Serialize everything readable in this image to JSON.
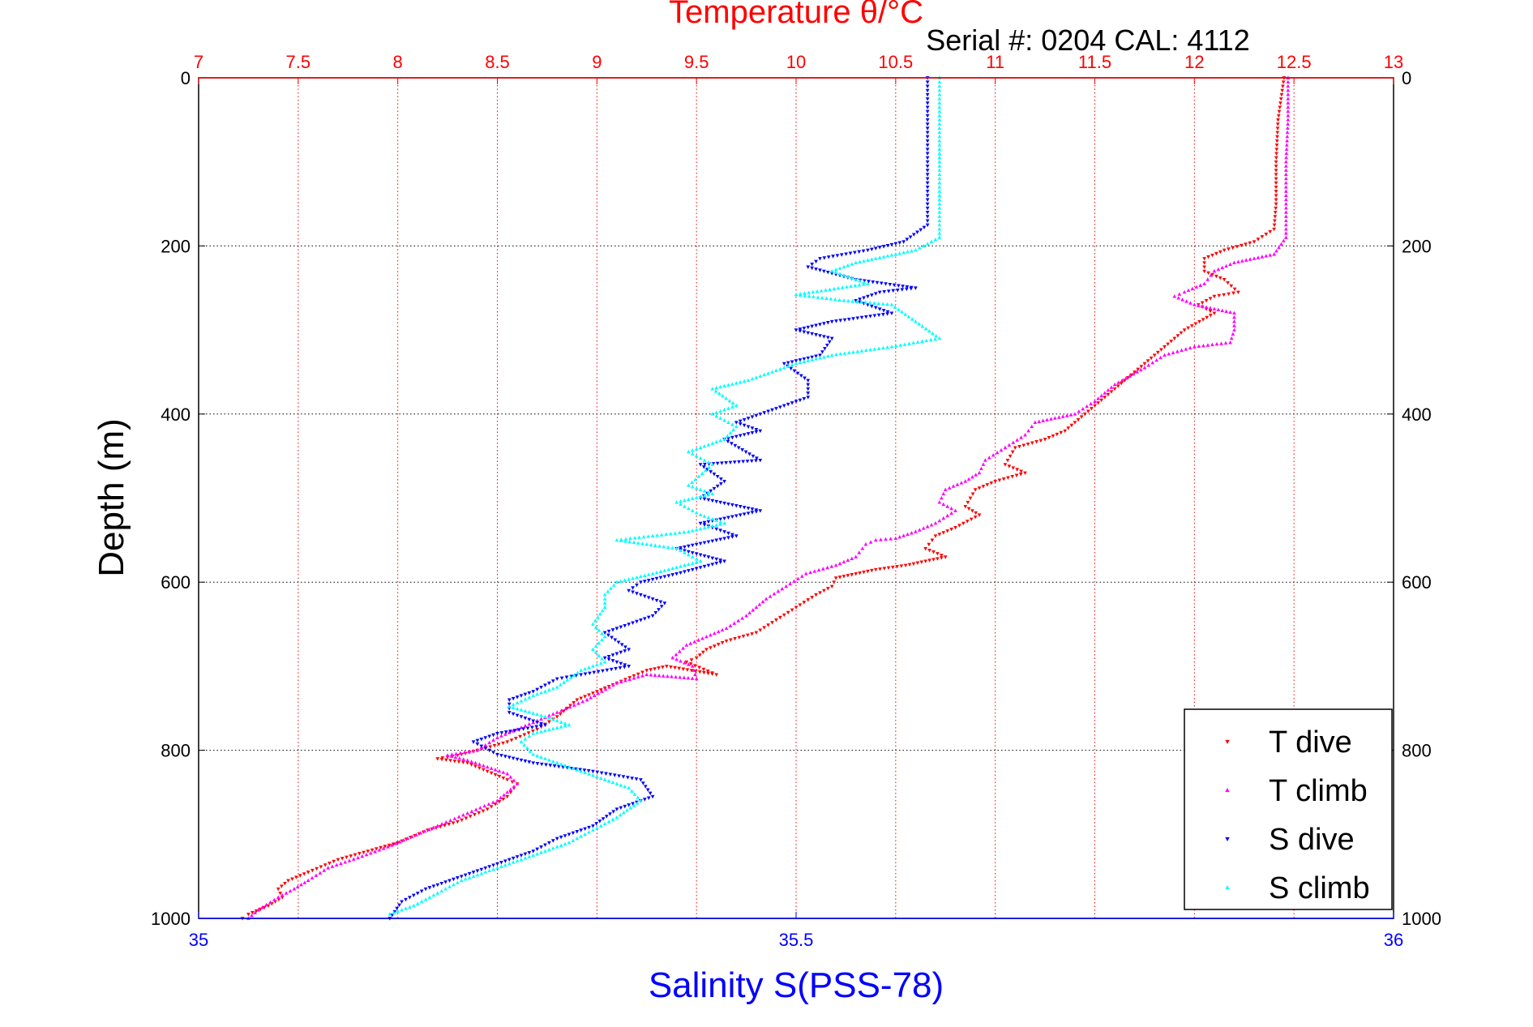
{
  "chart_data": {
    "type": "scatter",
    "title": "Temperature θ/°C",
    "subtitle": "Serial #: 0204  CAL: 4112",
    "ylabel": "Depth (m)",
    "xlabel": "Salinity S(PSS-78)",
    "top_axis": {
      "label": "Temperature θ/°C",
      "lim": [
        7,
        13
      ],
      "ticks": [
        7,
        7.5,
        8,
        8.5,
        9,
        9.5,
        10,
        10.5,
        11,
        11.5,
        12,
        12.5,
        13
      ],
      "tick_labels": [
        "7",
        "7.5",
        "8",
        "8.5",
        "9",
        "9.5",
        "10",
        "10.5",
        "11",
        "11.5",
        "12",
        "12.5",
        "13"
      ],
      "color": "#ff0000"
    },
    "bottom_axis": {
      "label": "Salinity S(PSS-78)",
      "lim": [
        35,
        36
      ],
      "ticks": [
        35,
        35.5,
        36
      ],
      "tick_labels": [
        "35",
        "35.5",
        "36"
      ],
      "color": "#0000ff"
    },
    "y_axis": {
      "lim": [
        0,
        1000
      ],
      "reversed": true,
      "ticks": [
        0,
        200,
        400,
        600,
        800,
        1000
      ],
      "tick_labels": [
        "0",
        "200",
        "400",
        "600",
        "800",
        "1000"
      ]
    },
    "grid": true,
    "legend_placement": "bottom-right",
    "series": [
      {
        "name": "T dive",
        "axis": "temperature",
        "color": "#ff0000",
        "marker": "triangle-down",
        "points": [
          [
            12.45,
            0
          ],
          [
            12.42,
            50
          ],
          [
            12.41,
            100
          ],
          [
            12.41,
            150
          ],
          [
            12.4,
            180
          ],
          [
            12.3,
            195
          ],
          [
            12.15,
            205
          ],
          [
            12.05,
            215
          ],
          [
            12.05,
            230
          ],
          [
            12.15,
            240
          ],
          [
            12.22,
            255
          ],
          [
            12.1,
            260
          ],
          [
            12.02,
            270
          ],
          [
            12.1,
            280
          ],
          [
            11.95,
            300
          ],
          [
            11.85,
            320
          ],
          [
            11.75,
            340
          ],
          [
            11.65,
            360
          ],
          [
            11.55,
            380
          ],
          [
            11.45,
            400
          ],
          [
            11.35,
            420
          ],
          [
            11.25,
            430
          ],
          [
            11.1,
            440
          ],
          [
            11.05,
            460
          ],
          [
            11.15,
            470
          ],
          [
            11.0,
            480
          ],
          [
            10.9,
            490
          ],
          [
            10.85,
            510
          ],
          [
            10.92,
            520
          ],
          [
            10.8,
            535
          ],
          [
            10.7,
            545
          ],
          [
            10.65,
            560
          ],
          [
            10.75,
            570
          ],
          [
            10.55,
            580
          ],
          [
            10.4,
            585
          ],
          [
            10.2,
            595
          ],
          [
            10.18,
            605
          ],
          [
            10.1,
            615
          ],
          [
            10.0,
            630
          ],
          [
            9.9,
            645
          ],
          [
            9.8,
            660
          ],
          [
            9.65,
            670
          ],
          [
            9.55,
            680
          ],
          [
            9.5,
            690
          ],
          [
            9.45,
            695
          ],
          [
            9.6,
            710
          ],
          [
            9.35,
            700
          ],
          [
            9.25,
            705
          ],
          [
            9.1,
            720
          ],
          [
            8.9,
            740
          ],
          [
            8.8,
            760
          ],
          [
            8.7,
            775
          ],
          [
            8.55,
            790
          ],
          [
            8.4,
            800
          ],
          [
            8.3,
            806
          ],
          [
            8.2,
            810
          ],
          [
            8.35,
            815
          ],
          [
            8.45,
            825
          ],
          [
            8.55,
            835
          ],
          [
            8.6,
            840
          ],
          [
            8.55,
            855
          ],
          [
            8.45,
            870
          ],
          [
            8.3,
            885
          ],
          [
            8.15,
            895
          ],
          [
            8.0,
            910
          ],
          [
            7.85,
            920
          ],
          [
            7.7,
            930
          ],
          [
            7.55,
            945
          ],
          [
            7.45,
            955
          ],
          [
            7.4,
            965
          ],
          [
            7.42,
            975
          ],
          [
            7.35,
            985
          ],
          [
            7.25,
            995
          ],
          [
            7.22,
            1000
          ]
        ]
      },
      {
        "name": "T climb",
        "axis": "temperature",
        "color": "#ff00ff",
        "marker": "triangle-up",
        "points": [
          [
            12.47,
            0
          ],
          [
            12.47,
            50
          ],
          [
            12.46,
            100
          ],
          [
            12.46,
            150
          ],
          [
            12.46,
            190
          ],
          [
            12.4,
            210
          ],
          [
            12.2,
            220
          ],
          [
            12.1,
            230
          ],
          [
            12.05,
            245
          ],
          [
            11.95,
            255
          ],
          [
            11.9,
            260
          ],
          [
            12.0,
            270
          ],
          [
            12.2,
            280
          ],
          [
            12.2,
            300
          ],
          [
            12.18,
            315
          ],
          [
            12.0,
            320
          ],
          [
            11.85,
            330
          ],
          [
            11.75,
            345
          ],
          [
            11.6,
            365
          ],
          [
            11.5,
            385
          ],
          [
            11.4,
            400
          ],
          [
            11.2,
            410
          ],
          [
            11.15,
            425
          ],
          [
            11.05,
            440
          ],
          [
            10.95,
            455
          ],
          [
            10.92,
            470
          ],
          [
            10.85,
            480
          ],
          [
            10.75,
            490
          ],
          [
            10.72,
            505
          ],
          [
            10.8,
            515
          ],
          [
            10.7,
            530
          ],
          [
            10.6,
            540
          ],
          [
            10.5,
            548
          ],
          [
            10.4,
            550
          ],
          [
            10.35,
            555
          ],
          [
            10.3,
            570
          ],
          [
            10.2,
            580
          ],
          [
            10.05,
            590
          ],
          [
            9.95,
            605
          ],
          [
            9.85,
            620
          ],
          [
            9.75,
            640
          ],
          [
            9.65,
            655
          ],
          [
            9.55,
            665
          ],
          [
            9.45,
            675
          ],
          [
            9.38,
            690
          ],
          [
            9.48,
            700
          ],
          [
            9.5,
            715
          ],
          [
            9.25,
            710
          ],
          [
            9.1,
            720
          ],
          [
            8.95,
            740
          ],
          [
            8.8,
            755
          ],
          [
            8.7,
            765
          ],
          [
            8.6,
            775
          ],
          [
            8.5,
            785
          ],
          [
            8.4,
            800
          ],
          [
            8.25,
            806
          ],
          [
            8.35,
            812
          ],
          [
            8.45,
            820
          ],
          [
            8.55,
            828
          ],
          [
            8.6,
            840
          ],
          [
            8.5,
            860
          ],
          [
            8.35,
            875
          ],
          [
            8.2,
            890
          ],
          [
            8.05,
            905
          ],
          [
            7.95,
            915
          ],
          [
            7.8,
            928
          ],
          [
            7.65,
            940
          ],
          [
            7.55,
            955
          ],
          [
            7.48,
            965
          ],
          [
            7.4,
            975
          ],
          [
            7.3,
            990
          ],
          [
            7.25,
            1000
          ]
        ]
      },
      {
        "name": "S dive",
        "axis": "salinity",
        "color": "#0000ff",
        "marker": "triangle-down",
        "points": [
          [
            35.61,
            0
          ],
          [
            35.61,
            50
          ],
          [
            35.61,
            100
          ],
          [
            35.61,
            150
          ],
          [
            35.61,
            175
          ],
          [
            35.59,
            195
          ],
          [
            35.56,
            205
          ],
          [
            35.52,
            215
          ],
          [
            35.51,
            225
          ],
          [
            35.55,
            240
          ],
          [
            35.6,
            250
          ],
          [
            35.57,
            255
          ],
          [
            35.55,
            265
          ],
          [
            35.58,
            280
          ],
          [
            35.53,
            290
          ],
          [
            35.5,
            300
          ],
          [
            35.53,
            310
          ],
          [
            35.52,
            330
          ],
          [
            35.49,
            340
          ],
          [
            35.51,
            360
          ],
          [
            35.51,
            380
          ],
          [
            35.48,
            395
          ],
          [
            35.45,
            410
          ],
          [
            35.47,
            420
          ],
          [
            35.44,
            430
          ],
          [
            35.47,
            455
          ],
          [
            35.42,
            460
          ],
          [
            35.44,
            480
          ],
          [
            35.42,
            500
          ],
          [
            35.47,
            515
          ],
          [
            35.42,
            530
          ],
          [
            35.45,
            545
          ],
          [
            35.4,
            560
          ],
          [
            35.44,
            575
          ],
          [
            35.4,
            590
          ],
          [
            35.37,
            600
          ],
          [
            35.36,
            610
          ],
          [
            35.39,
            625
          ],
          [
            35.38,
            640
          ],
          [
            35.36,
            650
          ],
          [
            35.34,
            660
          ],
          [
            35.36,
            680
          ],
          [
            35.34,
            690
          ],
          [
            35.36,
            700
          ],
          [
            35.32,
            710
          ],
          [
            35.3,
            715
          ],
          [
            35.28,
            730
          ],
          [
            35.26,
            740
          ],
          [
            35.26,
            755
          ],
          [
            35.29,
            770
          ],
          [
            35.25,
            780
          ],
          [
            35.23,
            790
          ],
          [
            35.25,
            805
          ],
          [
            35.28,
            815
          ],
          [
            35.33,
            825
          ],
          [
            35.37,
            835
          ],
          [
            35.38,
            855
          ],
          [
            35.35,
            870
          ],
          [
            35.33,
            890
          ],
          [
            35.3,
            905
          ],
          [
            35.28,
            920
          ],
          [
            35.25,
            935
          ],
          [
            35.22,
            950
          ],
          [
            35.19,
            965
          ],
          [
            35.17,
            980
          ],
          [
            35.16,
            1000
          ]
        ]
      },
      {
        "name": "S climb",
        "axis": "salinity",
        "color": "#00ffff",
        "marker": "triangle-up",
        "points": [
          [
            35.62,
            0
          ],
          [
            35.62,
            50
          ],
          [
            35.62,
            100
          ],
          [
            35.62,
            150
          ],
          [
            35.62,
            190
          ],
          [
            35.6,
            205
          ],
          [
            35.55,
            220
          ],
          [
            35.53,
            230
          ],
          [
            35.56,
            245
          ],
          [
            35.5,
            258
          ],
          [
            35.54,
            265
          ],
          [
            35.58,
            270
          ],
          [
            35.62,
            310
          ],
          [
            35.58,
            320
          ],
          [
            35.53,
            330
          ],
          [
            35.5,
            340
          ],
          [
            35.46,
            360
          ],
          [
            35.43,
            370
          ],
          [
            35.45,
            390
          ],
          [
            35.43,
            400
          ],
          [
            35.45,
            415
          ],
          [
            35.44,
            430
          ],
          [
            35.41,
            445
          ],
          [
            35.43,
            460
          ],
          [
            35.41,
            485
          ],
          [
            35.43,
            495
          ],
          [
            35.4,
            505
          ],
          [
            35.42,
            520
          ],
          [
            35.44,
            530
          ],
          [
            35.41,
            540
          ],
          [
            35.38,
            545
          ],
          [
            35.35,
            550
          ],
          [
            35.4,
            560
          ],
          [
            35.42,
            575
          ],
          [
            35.38,
            590
          ],
          [
            35.35,
            600
          ],
          [
            35.34,
            615
          ],
          [
            35.34,
            630
          ],
          [
            35.33,
            650
          ],
          [
            35.34,
            665
          ],
          [
            35.33,
            680
          ],
          [
            35.34,
            695
          ],
          [
            35.32,
            705
          ],
          [
            35.3,
            725
          ],
          [
            35.28,
            735
          ],
          [
            35.26,
            748
          ],
          [
            35.29,
            760
          ],
          [
            35.31,
            770
          ],
          [
            35.28,
            780
          ],
          [
            35.27,
            790
          ],
          [
            35.28,
            805
          ],
          [
            35.3,
            815
          ],
          [
            35.33,
            830
          ],
          [
            35.36,
            845
          ],
          [
            35.37,
            860
          ],
          [
            35.35,
            880
          ],
          [
            35.33,
            895
          ],
          [
            35.31,
            910
          ],
          [
            35.28,
            925
          ],
          [
            35.25,
            940
          ],
          [
            35.22,
            955
          ],
          [
            35.2,
            970
          ],
          [
            35.18,
            985
          ],
          [
            35.16,
            995
          ]
        ]
      }
    ]
  }
}
